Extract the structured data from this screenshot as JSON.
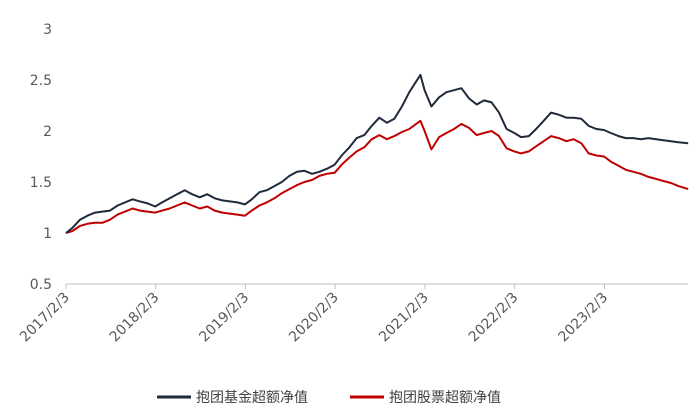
{
  "chart_data": {
    "type": "line",
    "title": "",
    "xlabel": "",
    "ylabel": "",
    "ylim": [
      0.5,
      3
    ],
    "yticks": [
      "0.5",
      "1",
      "1.5",
      "2",
      "2.5",
      "3"
    ],
    "xticks": [
      "2017/2/3",
      "2018/2/3",
      "2019/2/3",
      "2020/2/3",
      "2021/2/3",
      "2022/2/3",
      "2023/2/3"
    ],
    "grid": false,
    "legend_position": "bottom",
    "series": [
      {
        "name": "抱团基金超额净值",
        "color": "#1f2a3a",
        "points": [
          [
            "2017-02-03",
            1.0
          ],
          [
            "2017-03-01",
            1.05
          ],
          [
            "2017-04-01",
            1.13
          ],
          [
            "2017-05-01",
            1.17
          ],
          [
            "2017-06-01",
            1.2
          ],
          [
            "2017-07-01",
            1.21
          ],
          [
            "2017-08-01",
            1.22
          ],
          [
            "2017-09-01",
            1.27
          ],
          [
            "2017-10-01",
            1.3
          ],
          [
            "2017-11-01",
            1.33
          ],
          [
            "2017-12-01",
            1.31
          ],
          [
            "2018-01-01",
            1.29
          ],
          [
            "2018-02-01",
            1.26
          ],
          [
            "2018-03-01",
            1.3
          ],
          [
            "2018-04-01",
            1.34
          ],
          [
            "2018-05-01",
            1.38
          ],
          [
            "2018-06-01",
            1.42
          ],
          [
            "2018-07-01",
            1.38
          ],
          [
            "2018-08-01",
            1.35
          ],
          [
            "2018-09-01",
            1.38
          ],
          [
            "2018-10-01",
            1.34
          ],
          [
            "2018-11-01",
            1.32
          ],
          [
            "2018-12-01",
            1.31
          ],
          [
            "2019-01-01",
            1.3
          ],
          [
            "2019-02-01",
            1.28
          ],
          [
            "2019-03-01",
            1.33
          ],
          [
            "2019-04-01",
            1.4
          ],
          [
            "2019-05-01",
            1.42
          ],
          [
            "2019-06-01",
            1.46
          ],
          [
            "2019-07-01",
            1.5
          ],
          [
            "2019-08-01",
            1.56
          ],
          [
            "2019-09-01",
            1.6
          ],
          [
            "2019-10-01",
            1.61
          ],
          [
            "2019-11-01",
            1.58
          ],
          [
            "2019-12-01",
            1.6
          ],
          [
            "2020-01-01",
            1.63
          ],
          [
            "2020-02-01",
            1.67
          ],
          [
            "2020-03-01",
            1.76
          ],
          [
            "2020-04-01",
            1.84
          ],
          [
            "2020-05-01",
            1.93
          ],
          [
            "2020-06-01",
            1.96
          ],
          [
            "2020-07-01",
            2.05
          ],
          [
            "2020-08-01",
            2.13
          ],
          [
            "2020-09-01",
            2.08
          ],
          [
            "2020-10-01",
            2.12
          ],
          [
            "2020-11-01",
            2.24
          ],
          [
            "2020-12-01",
            2.38
          ],
          [
            "2021-01-15",
            2.55
          ],
          [
            "2021-02-01",
            2.4
          ],
          [
            "2021-03-01",
            2.24
          ],
          [
            "2021-04-01",
            2.33
          ],
          [
            "2021-05-01",
            2.38
          ],
          [
            "2021-06-01",
            2.4
          ],
          [
            "2021-07-01",
            2.42
          ],
          [
            "2021-08-01",
            2.32
          ],
          [
            "2021-09-01",
            2.26
          ],
          [
            "2021-10-01",
            2.3
          ],
          [
            "2021-11-01",
            2.28
          ],
          [
            "2021-12-01",
            2.18
          ],
          [
            "2022-01-01",
            2.02
          ],
          [
            "2022-02-01",
            1.98
          ],
          [
            "2022-03-01",
            1.94
          ],
          [
            "2022-04-01",
            1.95
          ],
          [
            "2022-05-01",
            2.02
          ],
          [
            "2022-06-01",
            2.1
          ],
          [
            "2022-07-01",
            2.18
          ],
          [
            "2022-08-01",
            2.16
          ],
          [
            "2022-09-01",
            2.13
          ],
          [
            "2022-10-01",
            2.13
          ],
          [
            "2022-11-01",
            2.12
          ],
          [
            "2022-12-01",
            2.05
          ],
          [
            "2023-01-01",
            2.02
          ],
          [
            "2023-02-01",
            2.01
          ],
          [
            "2023-03-01",
            1.98
          ],
          [
            "2023-04-01",
            1.95
          ],
          [
            "2023-05-01",
            1.93
          ],
          [
            "2023-06-01",
            1.93
          ],
          [
            "2023-07-01",
            1.92
          ],
          [
            "2023-08-01",
            1.93
          ],
          [
            "2023-09-01",
            1.92
          ],
          [
            "2023-10-01",
            1.91
          ],
          [
            "2023-11-01",
            1.9
          ],
          [
            "2023-12-01",
            1.89
          ],
          [
            "2024-01-10",
            1.88
          ]
        ]
      },
      {
        "name": "抱团股票超额净值",
        "color": "#c00000",
        "points": [
          [
            "2017-02-03",
            1.0
          ],
          [
            "2017-03-01",
            1.02
          ],
          [
            "2017-04-01",
            1.07
          ],
          [
            "2017-05-01",
            1.09
          ],
          [
            "2017-06-01",
            1.1
          ],
          [
            "2017-07-01",
            1.1
          ],
          [
            "2017-08-01",
            1.13
          ],
          [
            "2017-09-01",
            1.18
          ],
          [
            "2017-10-01",
            1.21
          ],
          [
            "2017-11-01",
            1.24
          ],
          [
            "2017-12-01",
            1.22
          ],
          [
            "2018-01-01",
            1.21
          ],
          [
            "2018-02-01",
            1.2
          ],
          [
            "2018-03-01",
            1.22
          ],
          [
            "2018-04-01",
            1.24
          ],
          [
            "2018-05-01",
            1.27
          ],
          [
            "2018-06-01",
            1.3
          ],
          [
            "2018-07-01",
            1.27
          ],
          [
            "2018-08-01",
            1.24
          ],
          [
            "2018-09-01",
            1.26
          ],
          [
            "2018-10-01",
            1.22
          ],
          [
            "2018-11-01",
            1.2
          ],
          [
            "2018-12-01",
            1.19
          ],
          [
            "2019-01-01",
            1.18
          ],
          [
            "2019-02-01",
            1.17
          ],
          [
            "2019-03-01",
            1.22
          ],
          [
            "2019-04-01",
            1.27
          ],
          [
            "2019-05-01",
            1.3
          ],
          [
            "2019-06-01",
            1.34
          ],
          [
            "2019-07-01",
            1.39
          ],
          [
            "2019-08-01",
            1.43
          ],
          [
            "2019-09-01",
            1.47
          ],
          [
            "2019-10-01",
            1.5
          ],
          [
            "2019-11-01",
            1.52
          ],
          [
            "2019-12-01",
            1.56
          ],
          [
            "2020-01-01",
            1.58
          ],
          [
            "2020-02-01",
            1.59
          ],
          [
            "2020-03-01",
            1.67
          ],
          [
            "2020-04-01",
            1.74
          ],
          [
            "2020-05-01",
            1.8
          ],
          [
            "2020-06-01",
            1.84
          ],
          [
            "2020-07-01",
            1.92
          ],
          [
            "2020-08-01",
            1.96
          ],
          [
            "2020-09-01",
            1.92
          ],
          [
            "2020-10-01",
            1.95
          ],
          [
            "2020-11-01",
            1.99
          ],
          [
            "2020-12-01",
            2.02
          ],
          [
            "2021-01-15",
            2.1
          ],
          [
            "2021-02-01",
            2.0
          ],
          [
            "2021-03-01",
            1.82
          ],
          [
            "2021-04-01",
            1.94
          ],
          [
            "2021-05-01",
            1.98
          ],
          [
            "2021-06-01",
            2.02
          ],
          [
            "2021-07-01",
            2.07
          ],
          [
            "2021-08-01",
            2.03
          ],
          [
            "2021-09-01",
            1.96
          ],
          [
            "2021-10-01",
            1.98
          ],
          [
            "2021-11-01",
            2.0
          ],
          [
            "2021-12-01",
            1.95
          ],
          [
            "2022-01-01",
            1.83
          ],
          [
            "2022-02-01",
            1.8
          ],
          [
            "2022-03-01",
            1.78
          ],
          [
            "2022-04-01",
            1.8
          ],
          [
            "2022-05-01",
            1.85
          ],
          [
            "2022-06-01",
            1.9
          ],
          [
            "2022-07-01",
            1.95
          ],
          [
            "2022-08-01",
            1.93
          ],
          [
            "2022-09-01",
            1.9
          ],
          [
            "2022-10-01",
            1.92
          ],
          [
            "2022-11-01",
            1.88
          ],
          [
            "2022-12-01",
            1.78
          ],
          [
            "2023-01-01",
            1.76
          ],
          [
            "2023-02-01",
            1.75
          ],
          [
            "2023-03-01",
            1.7
          ],
          [
            "2023-04-01",
            1.66
          ],
          [
            "2023-05-01",
            1.62
          ],
          [
            "2023-06-01",
            1.6
          ],
          [
            "2023-07-01",
            1.58
          ],
          [
            "2023-08-01",
            1.55
          ],
          [
            "2023-09-01",
            1.53
          ],
          [
            "2023-10-01",
            1.51
          ],
          [
            "2023-11-01",
            1.49
          ],
          [
            "2023-12-01",
            1.46
          ],
          [
            "2024-01-10",
            1.43
          ]
        ]
      }
    ]
  }
}
